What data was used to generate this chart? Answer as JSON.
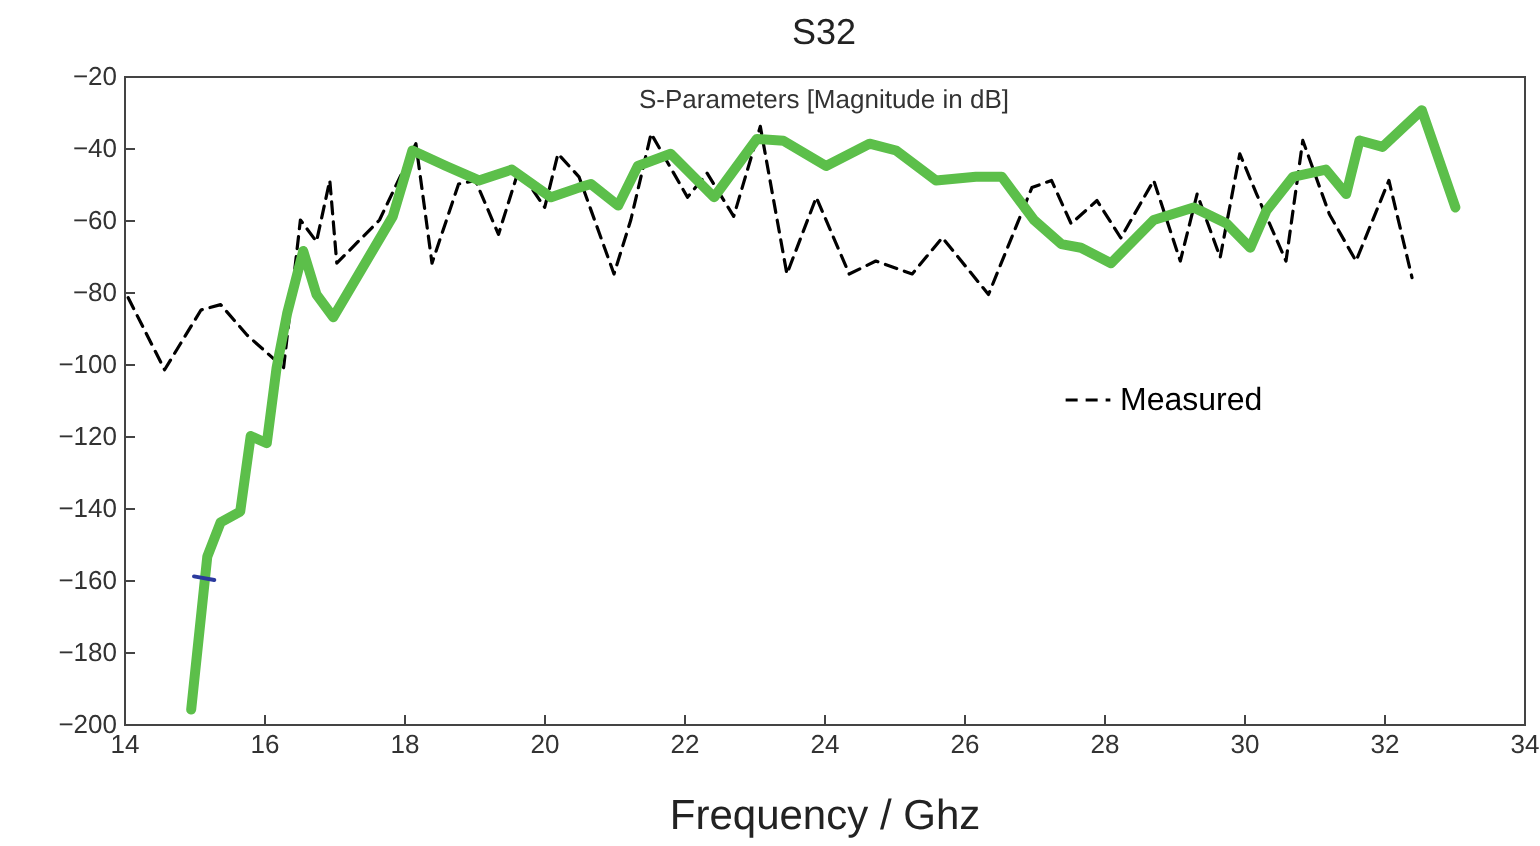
{
  "chart_data": {
    "type": "line",
    "title": "S32",
    "subtitle": "S-Parameters [Magnitude in dB]",
    "xlabel": "Frequency / Ghz",
    "xlim": [
      14,
      34
    ],
    "ylim": [
      -200,
      -20
    ],
    "xticks": [
      14,
      16,
      18,
      20,
      22,
      24,
      26,
      28,
      30,
      32,
      34
    ],
    "yticks": [
      -200,
      -180,
      -160,
      -140,
      -120,
      -100,
      -80,
      -60,
      -40,
      -20
    ],
    "grid": false,
    "legend": "right",
    "marker": "none",
    "series": [
      {
        "name": "Measured",
        "color": "#000000",
        "line_style": "dashed",
        "x": [
          14.06,
          14.58,
          15.1,
          15.38,
          15.76,
          16.28,
          16.52,
          16.75,
          16.94,
          17.04,
          17.65,
          18.17,
          18.4,
          18.78,
          19.02,
          19.35,
          19.64,
          20.01,
          20.2,
          20.5,
          21.0,
          21.24,
          21.53,
          22.05,
          22.33,
          22.71,
          23.09,
          23.47,
          23.89,
          24.36,
          24.74,
          25.26,
          25.69,
          26.35,
          26.97,
          27.25,
          27.53,
          27.9,
          28.24,
          28.71,
          29.09,
          29.33,
          29.66,
          29.94,
          30.18,
          30.6,
          30.84,
          31.22,
          31.6,
          32.07,
          32.4
        ],
        "values": [
          -81.6,
          -101.6,
          -85,
          -83.5,
          -92,
          -101,
          -60,
          -66,
          -49,
          -72,
          -60,
          -38.8,
          -72,
          -50,
          -49,
          -64,
          -46,
          -56.5,
          -41.6,
          -48,
          -75,
          -60,
          -36,
          -53.7,
          -47,
          -59,
          -34,
          -75,
          -53.7,
          -75,
          -71.4,
          -75,
          -64.9,
          -80.7,
          -51,
          -49,
          -61,
          -54.6,
          -65,
          -49,
          -71.4,
          -52.8,
          -70.4,
          -41.6,
          -52.8,
          -71.4,
          -37.9,
          -58.4,
          -71.4,
          -49,
          -76
        ]
      },
      {
        "color": "#5cbf4a",
        "line_style": "solid",
        "x": [
          14.96,
          15.19,
          15.38,
          15.66,
          15.81,
          16.04,
          16.18,
          16.33,
          16.56,
          16.75,
          16.99,
          17.84,
          18.12,
          18.6,
          19.07,
          19.54,
          20.1,
          20.5,
          20.67,
          21.06,
          21.34,
          21.81,
          22.43,
          23.04,
          23.42,
          24.03,
          24.65,
          25.03,
          25.6,
          26.17,
          26.54,
          27.0,
          27.39,
          27.67,
          28.1,
          28.71,
          29.28,
          29.75,
          30.09,
          30.32,
          30.7,
          31.17,
          31.46,
          31.65,
          31.98,
          32.54,
          33.02
        ],
        "values": [
          -196,
          -153.5,
          -144,
          -141,
          -120,
          -122,
          -101,
          -86,
          -68.6,
          -80.7,
          -87,
          -59,
          -40.7,
          -45,
          -49,
          -46,
          -53.7,
          -51,
          -50,
          -56,
          -45,
          -41.6,
          -53.7,
          -37.5,
          -38,
          -45,
          -38.8,
          -40.7,
          -49,
          -48,
          -48,
          -60,
          -66.7,
          -67.7,
          -72,
          -60,
          -56.5,
          -61,
          -67.7,
          -57.4,
          -48,
          -46,
          -52.8,
          -37.9,
          -39.7,
          -29.5,
          -56.5
        ]
      },
      {
        "color": "#2b3a9e",
        "line_style": "solid",
        "x": [
          15.0,
          15.29
        ],
        "values": [
          -159,
          -160
        ]
      }
    ]
  }
}
